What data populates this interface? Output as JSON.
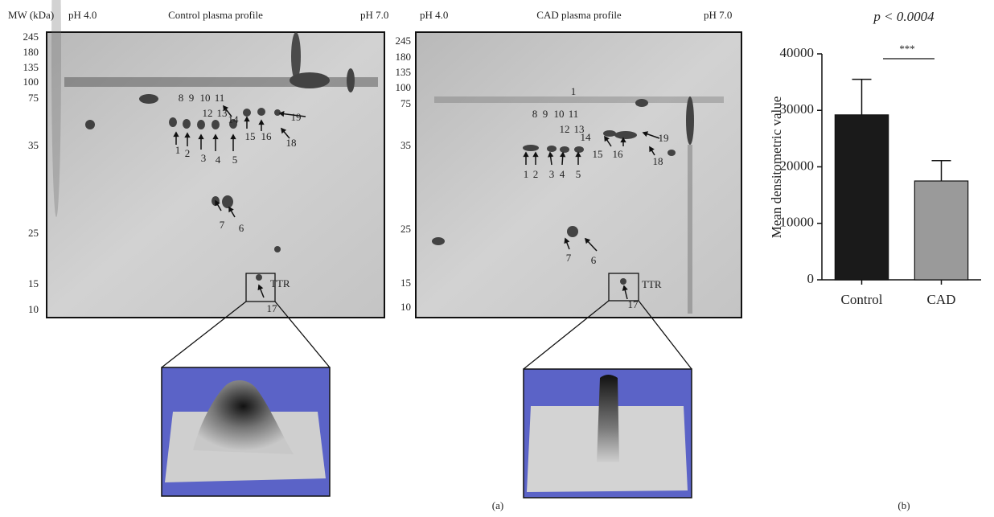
{
  "panel_a": {
    "caption": "(a)",
    "control": {
      "mw_header": "MW (kDa)",
      "ph_left": "pH 4.0",
      "title": "Control plasma profile",
      "ph_right": "pH 7.0",
      "mw_labels": [
        245,
        180,
        135,
        100,
        75,
        35,
        25,
        15,
        10
      ],
      "spot_labels": [
        "8",
        "9",
        "10",
        "11",
        "12",
        "13",
        "14",
        "19",
        "15",
        "16",
        "18",
        "1",
        "2",
        "3",
        "4",
        "5",
        "7",
        "6",
        "17"
      ],
      "box_label": "TTR"
    },
    "cad": {
      "ph_left": "pH 4.0",
      "title": "CAD plasma profile",
      "ph_right": "pH 7.0",
      "mw_labels": [
        245,
        180,
        135,
        100,
        75,
        35,
        25,
        15,
        10
      ],
      "spot_labels": [
        "1",
        "8",
        "9",
        "10",
        "11",
        "12",
        "13",
        "14",
        "15",
        "16",
        "19",
        "18",
        "1",
        "2",
        "3",
        "4",
        "5",
        "7",
        "6",
        "17"
      ],
      "box_label": "TTR"
    }
  },
  "chart_data": {
    "type": "bar",
    "caption": "(b)",
    "title": "p < 0.0004",
    "significance": "***",
    "y_label": "Mean densitometric value",
    "categories": [
      "Control",
      "CAD"
    ],
    "values": [
      29200,
      17500
    ],
    "errors": [
      6300,
      3600
    ],
    "colors": [
      "#1a1a1a",
      "#9a9a9a"
    ],
    "ylim": [
      0,
      40000
    ],
    "yticks": [
      0,
      10000,
      20000,
      30000,
      40000
    ]
  }
}
